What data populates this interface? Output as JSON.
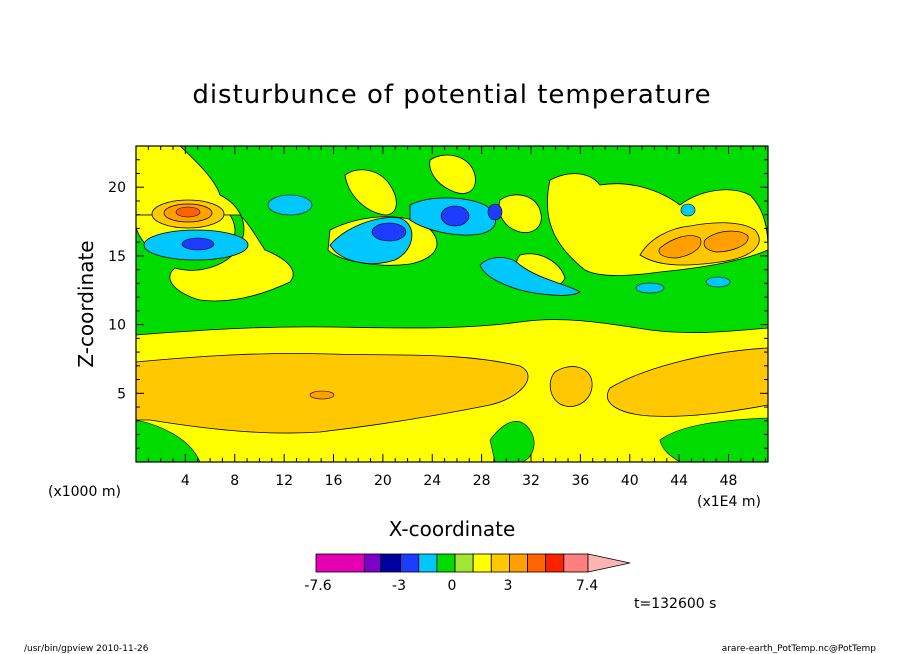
{
  "chart_data": {
    "type": "heatmap",
    "title": "disturbunce of potential temperature",
    "xlabel": "X-coordinate",
    "ylabel": "Z-coordinate",
    "x_unit": "(x1E4 m)",
    "y_unit": "(x1000 m)",
    "x_ticks": [
      4,
      8,
      12,
      16,
      20,
      24,
      28,
      32,
      36,
      40,
      44,
      48
    ],
    "y_ticks": [
      5,
      10,
      15,
      20
    ],
    "xlim": [
      0,
      51.2
    ],
    "ylim": [
      0,
      23
    ],
    "colorbar": {
      "colors": [
        "#e600b4",
        "#7f00c8",
        "#0000a0",
        "#1e3cff",
        "#00c8ff",
        "#00dc00",
        "#a0e632",
        "#ffff00",
        "#ffc800",
        "#ffa000",
        "#ff6400",
        "#ff2000",
        "#ff7f7f",
        "#ffb4b4"
      ],
      "tick_labels": [
        "-7.6",
        "-3",
        "0",
        "3",
        "7.4"
      ],
      "tick_values": [
        -7.6,
        -3,
        0,
        3,
        7.4
      ]
    },
    "time_label": "t=132600 s"
  },
  "footer": {
    "left": "/usr/bin/gpview   2010-11-26",
    "right": "arare-earth_PotTemp.nc@PotTemp"
  }
}
